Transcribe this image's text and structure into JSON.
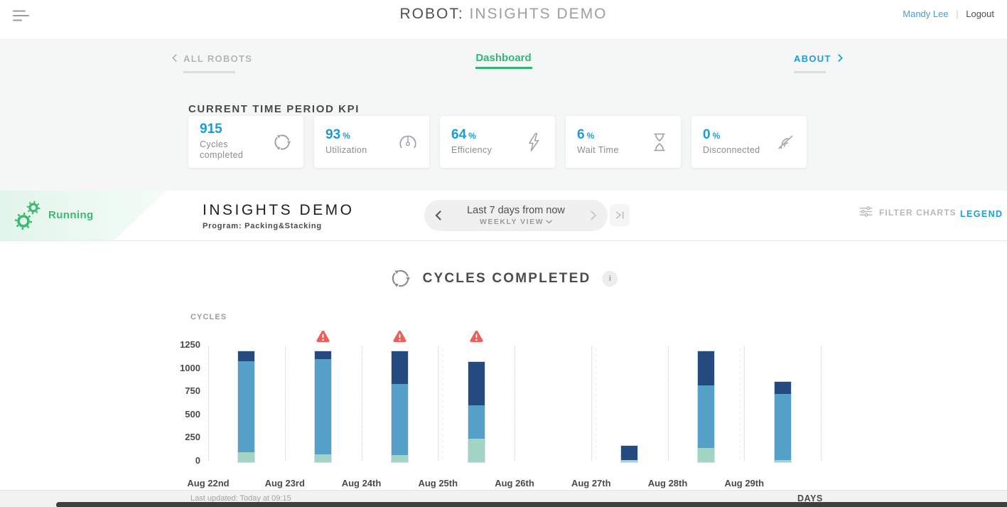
{
  "header": {
    "title_prefix": "ROBOT:",
    "title_suffix": "INSIGHTS DEMO",
    "user_name": "Mandy Lee",
    "separator": "|",
    "logout_label": "Logout"
  },
  "nav": {
    "back_label": "ALL ROBOTS",
    "dashboard_label": "Dashboard",
    "about_label": "ABOUT"
  },
  "kpi": {
    "section_title": "CURRENT TIME PERIOD KPI",
    "cards": [
      {
        "value": "915",
        "unit": "",
        "label": "Cycles completed",
        "icon": "cycles-icon"
      },
      {
        "value": "93",
        "unit": "%",
        "label": "Utilization",
        "icon": "gauge-icon"
      },
      {
        "value": "64",
        "unit": "%",
        "label": "Efficiency",
        "icon": "lightning-icon"
      },
      {
        "value": "6",
        "unit": "%",
        "label": "Wait Time",
        "icon": "hourglass-icon"
      },
      {
        "value": "0",
        "unit": "%",
        "label": "Disconnected",
        "icon": "disconnected-icon"
      }
    ]
  },
  "status_bar": {
    "status_label": "Running",
    "robot_name": "INSIGHTS DEMO",
    "program_label": "Program: Packing&Stacking",
    "period_label": "Last 7 days from now",
    "view_label": "WEEKLY VIEW",
    "filter_charts_label": "FILTER CHARTS",
    "legend_label": "LEGEND"
  },
  "chart": {
    "info_label": "i"
  },
  "chart_data": {
    "type": "bar",
    "stacked": true,
    "title": "CYCLES COMPLETED",
    "ylabel": "CYCLES",
    "xlabel": "DAYS",
    "ylim": [
      0,
      1250
    ],
    "yticks": [
      1250,
      1000,
      750,
      500,
      250,
      0
    ],
    "grid": "vertical-dotted",
    "legend_position": "hidden",
    "categories": [
      "Aug 22nd",
      "Aug 23rd",
      "Aug 24th",
      "Aug 25th",
      "Aug 26th",
      "Aug 27th",
      "Aug 28th",
      "Aug 29th"
    ],
    "series": [
      {
        "name": "bottom-green",
        "color": "#a3d5c4",
        "values": [
          110,
          85,
          80,
          255,
          0,
          20,
          155,
          25
        ]
      },
      {
        "name": "middle-blue",
        "color": "#55a0c9",
        "values": [
          980,
          1030,
          760,
          355,
          0,
          0,
          675,
          715
        ]
      },
      {
        "name": "top-navy",
        "color": "#254a80",
        "values": [
          110,
          85,
          360,
          475,
          0,
          160,
          370,
          130
        ]
      }
    ],
    "totals": [
      1200,
      1200,
      1200,
      1085,
      0,
      180,
      1200,
      870
    ],
    "warnings": [
      "Aug 23rd",
      "Aug 24th",
      "Aug 25th"
    ]
  },
  "footer": {
    "last_updated": "Last updated: Today at 09:15"
  },
  "colors": {
    "accent_blue": "#1e9cd7",
    "accent_green": "#3cba72",
    "bar_navy": "#254a80",
    "bar_blue": "#55a0c9",
    "bar_green": "#a3d5c4",
    "warning_red": "#e9615d",
    "band_bg": "#f5f7f6"
  }
}
